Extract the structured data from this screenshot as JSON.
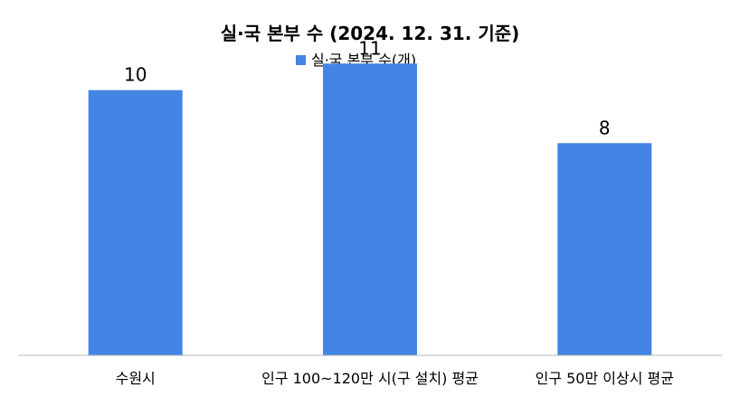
{
  "chart_data": {
    "type": "bar",
    "title": "실·국 본부 수 (2024.  12.  31. 기준)",
    "categories": [
      "수원시",
      "인구 100~120만 시(구 설치) 평균",
      "인구 50만 이상시 평균"
    ],
    "series": [
      {
        "name": "실·국 본부 수(개)",
        "values": [
          10,
          11,
          8
        ],
        "color": "#4285e4"
      }
    ],
    "data_labels": [
      "10",
      "11",
      "8"
    ],
    "ylim": [
      0,
      12
    ],
    "grid": false,
    "legend_position": "top-center",
    "xlabel": "",
    "ylabel": ""
  }
}
